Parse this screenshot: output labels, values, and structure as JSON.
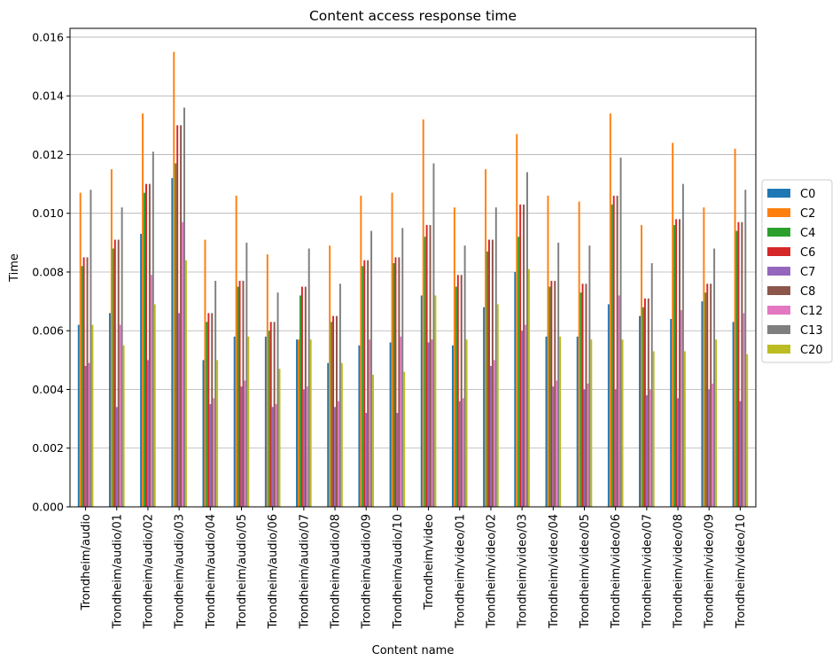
{
  "chart_data": {
    "type": "bar",
    "title": "Content access response time",
    "xlabel": "Content name",
    "ylabel": "Time",
    "ylim": [
      0,
      0.0163
    ],
    "yticks": [
      0.0,
      0.002,
      0.004,
      0.006,
      0.008,
      0.01,
      0.012,
      0.014,
      0.016
    ],
    "ytick_labels": [
      "0.000",
      "0.002",
      "0.004",
      "0.006",
      "0.008",
      "0.010",
      "0.012",
      "0.014",
      "0.016"
    ],
    "grid": "horizontal",
    "legend_position": "right",
    "categories": [
      "Trondheim/audio",
      "Trondheim/audio/01",
      "Trondheim/audio/02",
      "Trondheim/audio/03",
      "Trondheim/audio/04",
      "Trondheim/audio/05",
      "Trondheim/audio/06",
      "Trondheim/audio/07",
      "Trondheim/audio/08",
      "Trondheim/audio/09",
      "Trondheim/audio/10",
      "Trondheim/video",
      "Trondheim/video/01",
      "Trondheim/video/02",
      "Trondheim/video/03",
      "Trondheim/video/04",
      "Trondheim/video/05",
      "Trondheim/video/06",
      "Trondheim/video/07",
      "Trondheim/video/08",
      "Trondheim/video/09",
      "Trondheim/video/10"
    ],
    "series": [
      {
        "name": "C0",
        "color": "#1f77b4",
        "values": [
          0.0062,
          0.0066,
          0.0093,
          0.0112,
          0.005,
          0.0058,
          0.0058,
          0.0057,
          0.0049,
          0.0055,
          0.0056,
          0.0072,
          0.0055,
          0.0068,
          0.008,
          0.0058,
          0.0058,
          0.0069,
          0.0065,
          0.0064,
          0.007,
          0.0063
        ]
      },
      {
        "name": "C2",
        "color": "#ff7f0e",
        "values": [
          0.0107,
          0.0115,
          0.0134,
          0.0155,
          0.0091,
          0.0106,
          0.0086,
          0.0057,
          0.0089,
          0.0106,
          0.0107,
          0.0132,
          0.0102,
          0.0115,
          0.0127,
          0.0106,
          0.0104,
          0.0134,
          0.0096,
          0.0124,
          0.0102,
          0.0122
        ]
      },
      {
        "name": "C4",
        "color": "#2ca02c",
        "values": [
          0.0082,
          0.0088,
          0.0107,
          0.0117,
          0.0063,
          0.0075,
          0.006,
          0.0072,
          0.0063,
          0.0082,
          0.0083,
          0.0092,
          0.0075,
          0.0087,
          0.0092,
          0.0075,
          0.0073,
          0.0103,
          0.0068,
          0.0096,
          0.0073,
          0.0094
        ]
      },
      {
        "name": "C6",
        "color": "#d62728",
        "values": [
          0.0085,
          0.0091,
          0.011,
          0.013,
          0.0066,
          0.0077,
          0.0063,
          0.0075,
          0.0065,
          0.0084,
          0.0085,
          0.0096,
          0.0079,
          0.0091,
          0.0103,
          0.0077,
          0.0076,
          0.0106,
          0.0071,
          0.0098,
          0.0076,
          0.0097
        ]
      },
      {
        "name": "C7",
        "color": "#9467bd",
        "values": [
          0.0048,
          0.0034,
          0.005,
          0.0066,
          0.0035,
          0.0041,
          0.0034,
          0.004,
          0.0034,
          0.0032,
          0.0032,
          0.0056,
          0.0036,
          0.0048,
          0.006,
          0.0041,
          0.004,
          0.004,
          0.0038,
          0.0037,
          0.004,
          0.0036
        ]
      },
      {
        "name": "C8",
        "color": "#8c564b",
        "values": [
          0.0085,
          0.0091,
          0.011,
          0.013,
          0.0066,
          0.0077,
          0.0063,
          0.0075,
          0.0065,
          0.0084,
          0.0085,
          0.0096,
          0.0079,
          0.0091,
          0.0103,
          0.0077,
          0.0076,
          0.0106,
          0.0071,
          0.0098,
          0.0076,
          0.0097
        ]
      },
      {
        "name": "C12",
        "color": "#e377c2",
        "values": [
          0.0049,
          0.0062,
          0.0079,
          0.0097,
          0.0037,
          0.0043,
          0.0035,
          0.0041,
          0.0036,
          0.0057,
          0.0058,
          0.0057,
          0.0037,
          0.005,
          0.0062,
          0.0043,
          0.0042,
          0.0072,
          0.004,
          0.0067,
          0.0042,
          0.0066
        ]
      },
      {
        "name": "C13",
        "color": "#7f7f7f",
        "values": [
          0.0108,
          0.0102,
          0.0121,
          0.0136,
          0.0077,
          0.009,
          0.0073,
          0.0088,
          0.0076,
          0.0094,
          0.0095,
          0.0117,
          0.0089,
          0.0102,
          0.0114,
          0.009,
          0.0089,
          0.0119,
          0.0083,
          0.011,
          0.0088,
          0.0108
        ]
      },
      {
        "name": "C20",
        "color": "#bcbd22",
        "values": [
          0.0062,
          0.0055,
          0.0069,
          0.0084,
          0.005,
          0.0058,
          0.0047,
          0.0057,
          0.0049,
          0.0045,
          0.0046,
          0.0072,
          0.0057,
          0.0069,
          0.0081,
          0.0058,
          0.0057,
          0.0057,
          0.0053,
          0.0053,
          0.0057,
          0.0052
        ]
      }
    ]
  }
}
